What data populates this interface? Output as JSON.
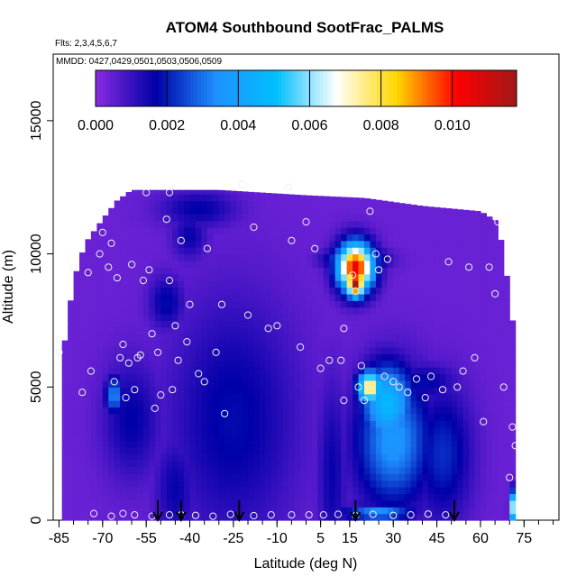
{
  "chart_data": {
    "type": "heatmap",
    "title": "ATOM4 Southbound SootFrac_PALMS",
    "flights_note": "Flts: 2,3,4,5,6,7",
    "dates_note": "MMDD: 0427,0429,0501,0503,0506,0509",
    "xlabel": "Latitude (deg N)",
    "ylabel": "Altitude (m)",
    "xlim": [
      -87,
      87
    ],
    "ylim": [
      0,
      17500
    ],
    "x_ticks": [
      -85,
      -70,
      -55,
      -40,
      -25,
      -10,
      5,
      15,
      30,
      45,
      60,
      75
    ],
    "y_ticks": [
      0,
      5000,
      10000,
      15000
    ],
    "colorbar": {
      "range": [
        0,
        0.0118
      ],
      "ticks": [
        0.0,
        0.002,
        0.004,
        0.006,
        0.008,
        0.01
      ],
      "tick_labels": [
        "0.000",
        "0.002",
        "0.004",
        "0.006",
        "0.008",
        "0.010"
      ],
      "colors": [
        "#8a2be2",
        "#0000a8",
        "#1e90ff",
        "#00bfff",
        "#ffffff",
        "#ffd700",
        "#ff0000",
        "#a01818"
      ]
    },
    "background_value": 0.0004,
    "field_extent": {
      "lat_min": -84,
      "lat_max": 72,
      "alt_top_at_lat": [
        [
          -84,
          6000
        ],
        [
          -80,
          9000
        ],
        [
          -76,
          10400
        ],
        [
          -70,
          11300
        ],
        [
          -65,
          12000
        ],
        [
          -60,
          12400
        ],
        [
          -30,
          12400
        ],
        [
          -15,
          12300
        ],
        [
          0,
          12200
        ],
        [
          20,
          12100
        ],
        [
          40,
          11800
        ],
        [
          60,
          11600
        ],
        [
          66,
          11200
        ],
        [
          70,
          8500
        ],
        [
          72,
          6500
        ]
      ]
    },
    "features": [
      {
        "lat": -37,
        "alt": 11700,
        "lat_width": 13,
        "alt_width": 700,
        "value": 0.0017
      },
      {
        "lat": -40,
        "alt": 10700,
        "lat_width": 6,
        "alt_width": 900,
        "value": 0.0016
      },
      {
        "lat": -48,
        "alt": 8200,
        "lat_width": 6,
        "alt_width": 1000,
        "value": 0.0018
      },
      {
        "lat": -25,
        "alt": 3800,
        "lat_width": 22,
        "alt_width": 4500,
        "value": 0.0018
      },
      {
        "lat": -60,
        "alt": 3800,
        "lat_width": 10,
        "alt_width": 2200,
        "value": 0.0017
      },
      {
        "lat": -66,
        "alt": 4700,
        "lat_width": 3,
        "alt_width": 700,
        "value": 0.0034
      },
      {
        "lat": -45,
        "alt": 1200,
        "lat_width": 7,
        "alt_width": 2000,
        "value": 0.0016
      },
      {
        "lat": 9,
        "alt": 1800,
        "lat_width": 5,
        "alt_width": 3500,
        "value": 0.0016
      },
      {
        "lat": 17,
        "alt": 9500,
        "lat_width": 6,
        "alt_width": 900,
        "value": 0.0106
      },
      {
        "lat": 17,
        "alt": 8900,
        "lat_width": 3,
        "alt_width": 500,
        "value": 0.0118
      },
      {
        "lat": 17,
        "alt": 9800,
        "lat_width": 9,
        "alt_width": 400,
        "value": 0.0045
      },
      {
        "lat": 22,
        "alt": 5000,
        "lat_width": 4,
        "alt_width": 600,
        "value": 0.0082
      },
      {
        "lat": 28,
        "alt": 4400,
        "lat_width": 9,
        "alt_width": 1500,
        "value": 0.0048
      },
      {
        "lat": 30,
        "alt": 3000,
        "lat_width": 13,
        "alt_width": 2500,
        "value": 0.0036
      },
      {
        "lat": 47,
        "alt": 2500,
        "lat_width": 10,
        "alt_width": 2500,
        "value": 0.0022
      },
      {
        "lat": 25,
        "alt": 300,
        "lat_width": 12,
        "alt_width": 300,
        "value": 0.0036
      },
      {
        "lat": 40,
        "alt": 5200,
        "lat_width": 12,
        "alt_width": 700,
        "value": 0.0018
      },
      {
        "lat": 71,
        "alt": 500,
        "lat_width": 1,
        "alt_width": 600,
        "value": 0.0062
      }
    ],
    "sample_points": [
      [
        -85,
        6300
      ],
      [
        -80,
        9500
      ],
      [
        -77,
        4800
      ],
      [
        -75,
        9300
      ],
      [
        -74,
        5600
      ],
      [
        -71,
        10000
      ],
      [
        -70,
        10800
      ],
      [
        -68,
        9500
      ],
      [
        -67,
        10400
      ],
      [
        -66,
        5200
      ],
      [
        -65,
        9100
      ],
      [
        -64,
        6100
      ],
      [
        -63,
        6600
      ],
      [
        -62,
        4600
      ],
      [
        -61,
        5900
      ],
      [
        -60,
        9600
      ],
      [
        -59,
        4900
      ],
      [
        -58,
        6100
      ],
      [
        -57,
        6200
      ],
      [
        -56,
        9000
      ],
      [
        -55,
        12300
      ],
      [
        -54,
        9400
      ],
      [
        -53,
        7000
      ],
      [
        -52,
        4200
      ],
      [
        -51,
        6300
      ],
      [
        -50,
        4700
      ],
      [
        -48,
        11300
      ],
      [
        -47,
        12300
      ],
      [
        -47,
        9000
      ],
      [
        -46,
        4900
      ],
      [
        -45,
        7300
      ],
      [
        -44,
        6000
      ],
      [
        -43,
        10500
      ],
      [
        -41,
        6700
      ],
      [
        -40,
        8100
      ],
      [
        -37,
        5500
      ],
      [
        -35,
        5200
      ],
      [
        -34,
        10200
      ],
      [
        -31,
        6300
      ],
      [
        -29,
        8100
      ],
      [
        -28,
        4000
      ],
      [
        -22,
        12600
      ],
      [
        -20,
        7700
      ],
      [
        -18,
        11000
      ],
      [
        -13,
        7200
      ],
      [
        -10,
        7300
      ],
      [
        -6,
        12500
      ],
      [
        -5,
        10500
      ],
      [
        -2,
        6500
      ],
      [
        0,
        11200
      ],
      [
        3,
        10200
      ],
      [
        5,
        5700
      ],
      [
        8,
        6000
      ],
      [
        12,
        6000
      ],
      [
        13,
        7200
      ],
      [
        13,
        4500
      ],
      [
        16,
        9200
      ],
      [
        17,
        8600
      ],
      [
        18,
        5000
      ],
      [
        19,
        5800
      ],
      [
        20,
        4500
      ],
      [
        22,
        11600
      ],
      [
        24,
        10000
      ],
      [
        25,
        9400
      ],
      [
        27,
        5400
      ],
      [
        28,
        9800
      ],
      [
        30,
        5200
      ],
      [
        32,
        5000
      ],
      [
        35,
        4800
      ],
      [
        38,
        5300
      ],
      [
        41,
        4600
      ],
      [
        43,
        5400
      ],
      [
        47,
        4900
      ],
      [
        49,
        9700
      ],
      [
        52,
        5000
      ],
      [
        54,
        5600
      ],
      [
        56,
        9500
      ],
      [
        58,
        6100
      ],
      [
        61,
        3700
      ],
      [
        63,
        9500
      ],
      [
        65,
        8500
      ],
      [
        66,
        11200
      ],
      [
        68,
        5000
      ],
      [
        70,
        1600
      ],
      [
        71,
        3500
      ],
      [
        72,
        2800
      ],
      [
        -73,
        250
      ],
      [
        -67,
        150
      ],
      [
        -63,
        250
      ],
      [
        -59,
        200
      ],
      [
        -53,
        150
      ],
      [
        -47,
        200
      ],
      [
        -43,
        200
      ],
      [
        -38,
        180
      ],
      [
        -32,
        150
      ],
      [
        -26,
        220
      ],
      [
        -18,
        170
      ],
      [
        -12,
        200
      ],
      [
        -5,
        200
      ],
      [
        1,
        200
      ],
      [
        6,
        200
      ],
      [
        11,
        220
      ],
      [
        17,
        170
      ],
      [
        23,
        220
      ],
      [
        30,
        180
      ],
      [
        36,
        200
      ],
      [
        42,
        230
      ],
      [
        48,
        200
      ]
    ],
    "flight_arrows_lat": [
      -51,
      -43,
      -23,
      17,
      51
    ]
  }
}
